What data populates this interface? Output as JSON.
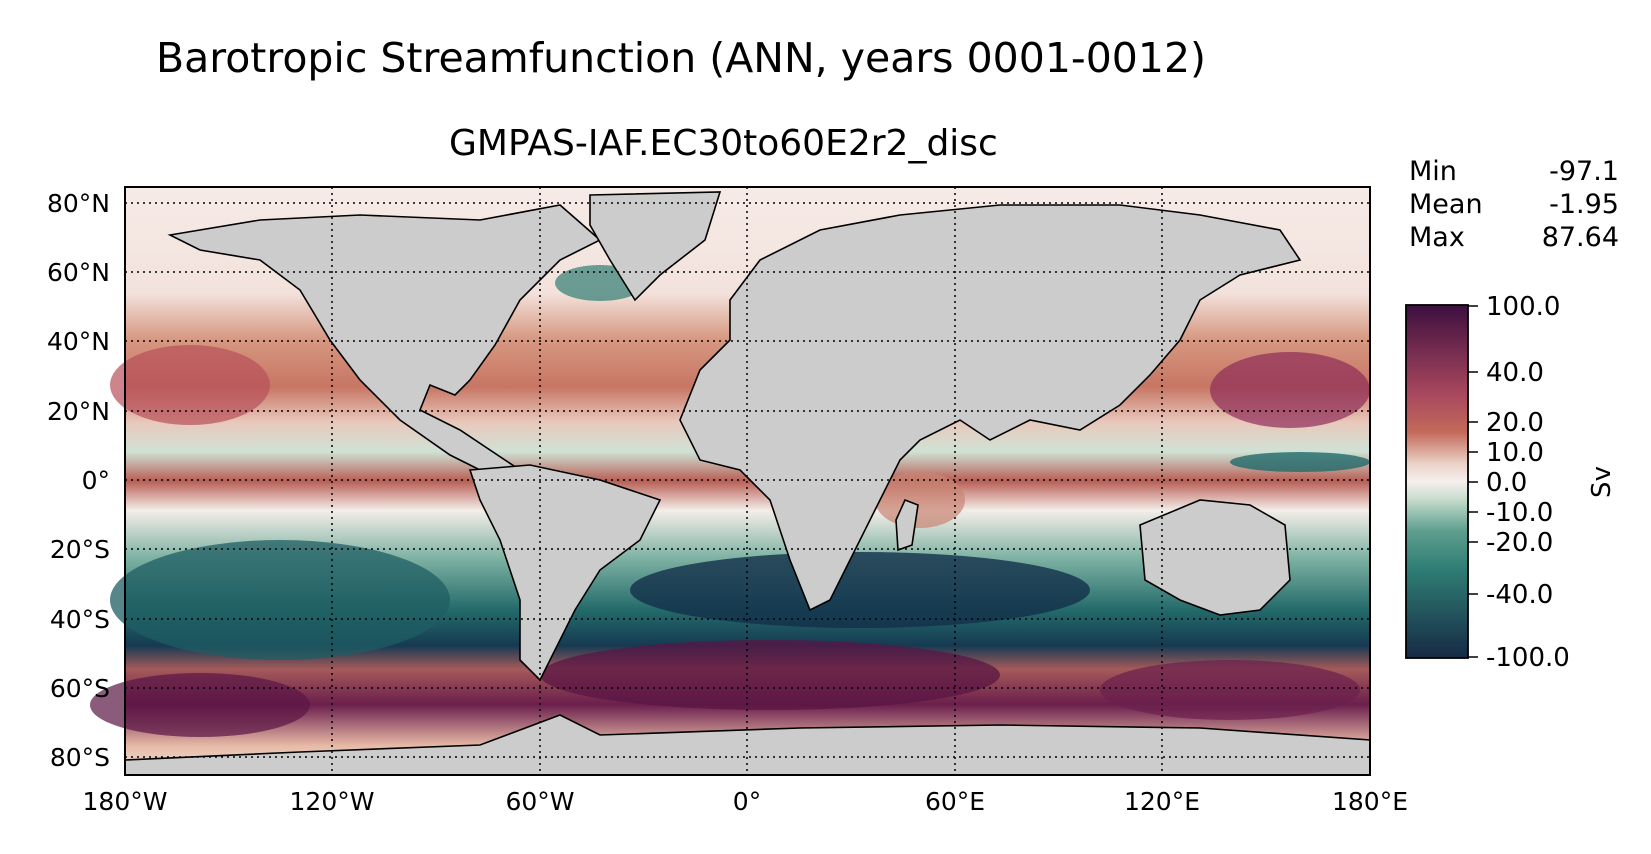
{
  "title": "Barotropic Streamfunction (ANN, years 0001-0012)",
  "subtitle": "GMPAS-IAF.EC30to60E2r2_disc",
  "stats": [
    {
      "label": "Min",
      "value": "-97.1"
    },
    {
      "label": "Mean",
      "value": "-1.95"
    },
    {
      "label": "Max",
      "value": "87.64"
    }
  ],
  "lat_ticks": [
    "80°N",
    "60°N",
    "40°N",
    "20°N",
    "0°",
    "20°S",
    "40°S",
    "60°S",
    "80°S"
  ],
  "lon_ticks": [
    "180°W",
    "120°W",
    "60°W",
    "0°",
    "60°E",
    "120°E",
    "180°E"
  ],
  "colorbar": {
    "label": "Sv",
    "ticks": [
      "100.0",
      "40.0",
      "20.0",
      "10.0",
      "0.0",
      "-10.0",
      "-20.0",
      "-40.0",
      "-100.0"
    ]
  },
  "colors": {
    "land": "#cccccc",
    "high": "#3d0f3f",
    "mid_high": "#c36a5a",
    "zero": "#f7f0ee",
    "mid_low": "#2f7d74",
    "low": "#162a45"
  }
}
